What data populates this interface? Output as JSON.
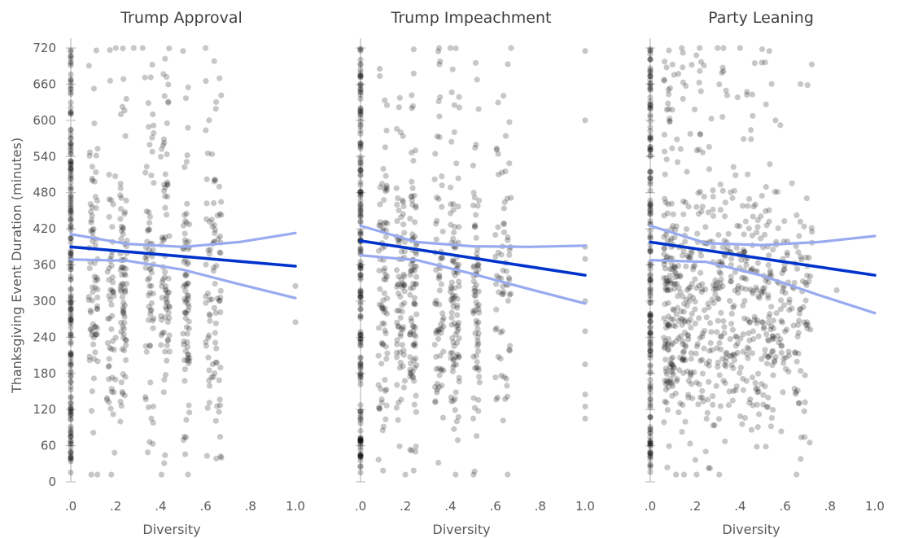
{
  "chart_data": {
    "type": "scatter",
    "ylabel": "Thanksgiving Event Duration (minutes)",
    "yticks": [
      "0",
      "60",
      "120",
      "180",
      "240",
      "300",
      "360",
      "420",
      "480",
      "540",
      "600",
      "660",
      "720"
    ],
    "ylim": [
      0,
      720
    ],
    "xlim": [
      0,
      1
    ],
    "xticks": [
      ".0",
      ".2",
      ".4",
      ".6",
      ".8",
      "1.0"
    ],
    "xtick_values": [
      0,
      0.2,
      0.4,
      0.6,
      0.8,
      1.0
    ],
    "xlabel": "Diversity",
    "point_color": "#000000",
    "fit_color": "#0033cc",
    "ci_color": "#99aaf0",
    "panels": [
      {
        "title": "Trump Approval",
        "fit": {
          "x": [
            0,
            1
          ],
          "y": [
            390,
            358
          ]
        },
        "ci_upper": {
          "x": [
            0,
            0.25,
            0.5,
            0.75,
            1
          ],
          "y": [
            411,
            395,
            390,
            398,
            413
          ]
        },
        "ci_lower": {
          "x": [
            0,
            0.25,
            0.5,
            0.75,
            1
          ],
          "y": [
            369,
            367,
            352,
            328,
            305
          ]
        },
        "seed": 11,
        "zero_points": 180,
        "points": 520,
        "clusters": [
          [
            0.08,
            0.12
          ],
          [
            0.16,
            0.2
          ],
          [
            0.22,
            0.25
          ],
          [
            0.33,
            0.37
          ],
          [
            0.4,
            0.44
          ],
          [
            0.5,
            0.53
          ],
          [
            0.6,
            0.67
          ]
        ],
        "y_mean": 320,
        "y_sd": 120,
        "extra": [
          [
            1.0,
            325
          ],
          [
            1.0,
            265
          ],
          [
            0.67,
            40
          ],
          [
            0.2,
            720
          ],
          [
            0.28,
            720
          ],
          [
            0.32,
            720
          ],
          [
            0.6,
            720
          ],
          [
            0.5,
            715
          ]
        ]
      },
      {
        "title": "Trump Impeachment",
        "fit": {
          "x": [
            0,
            1
          ],
          "y": [
            400,
            343
          ]
        },
        "ci_upper": {
          "x": [
            0,
            0.25,
            0.5,
            0.75,
            1
          ],
          "y": [
            425,
            398,
            391,
            390,
            392
          ]
        },
        "ci_lower": {
          "x": [
            0,
            0.25,
            0.5,
            0.75,
            1
          ],
          "y": [
            376,
            368,
            345,
            320,
            296
          ]
        },
        "seed": 23,
        "zero_points": 180,
        "points": 560,
        "clusters": [
          [
            0.08,
            0.12
          ],
          [
            0.16,
            0.2
          ],
          [
            0.22,
            0.25
          ],
          [
            0.33,
            0.37
          ],
          [
            0.4,
            0.44
          ],
          [
            0.5,
            0.53
          ],
          [
            0.6,
            0.67
          ]
        ],
        "y_mean": 300,
        "y_sd": 125,
        "extra": [
          [
            1.0,
            715
          ],
          [
            1.0,
            600
          ],
          [
            1.0,
            390
          ],
          [
            1.0,
            370
          ],
          [
            1.0,
            300
          ],
          [
            1.0,
            250
          ],
          [
            1.0,
            195
          ],
          [
            1.0,
            145
          ],
          [
            1.0,
            125
          ],
          [
            1.0,
            105
          ],
          [
            0.67,
            720
          ],
          [
            0.35,
            720
          ],
          [
            0.4,
            720
          ]
        ]
      },
      {
        "title": "Party Leaning",
        "fit": {
          "x": [
            0,
            1
          ],
          "y": [
            398,
            343
          ]
        },
        "ci_upper": {
          "x": [
            0,
            0.25,
            0.5,
            0.75,
            1
          ],
          "y": [
            425,
            396,
            393,
            398,
            408
          ]
        },
        "ci_lower": {
          "x": [
            0,
            0.25,
            0.5,
            0.75,
            1
          ],
          "y": [
            368,
            365,
            342,
            310,
            280
          ]
        },
        "seed": 37,
        "zero_points": 170,
        "points": 760,
        "clusters": [
          [
            0.06,
            0.72
          ]
        ],
        "y_mean": 285,
        "y_sd": 110,
        "extra": [
          [
            0.83,
            318
          ],
          [
            0.72,
            415
          ],
          [
            0.67,
            38
          ],
          [
            0.14,
            720
          ],
          [
            0.22,
            720
          ],
          [
            0.3,
            720
          ],
          [
            0.4,
            720
          ],
          [
            0.53,
            715
          ]
        ]
      }
    ]
  }
}
